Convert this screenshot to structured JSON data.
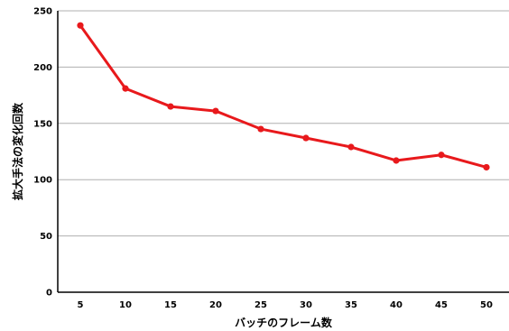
{
  "chart_data": {
    "type": "line",
    "title": "",
    "xlabel": "バッチのフレーム数",
    "ylabel": "拡大手法の変化回数",
    "x": [
      5,
      10,
      15,
      20,
      25,
      30,
      35,
      40,
      45,
      50
    ],
    "x_tick_labels": [
      "5",
      "10",
      "15",
      "20",
      "25",
      "30",
      "35",
      "40",
      "45",
      "50"
    ],
    "y_ticks": [
      0,
      50,
      100,
      150,
      200,
      250
    ],
    "y_tick_labels": [
      "0",
      "50",
      "100",
      "150",
      "200",
      "250"
    ],
    "ylim": [
      0,
      250
    ],
    "grid": "horizontal",
    "legend": "none",
    "series": [
      {
        "values": [
          237,
          181,
          165,
          161,
          145,
          137,
          129,
          117,
          122,
          111
        ],
        "color": "#e8191c"
      }
    ],
    "colors": {
      "grid": "#b0b0b0",
      "axis": "#000000",
      "line": "#e8191c"
    }
  }
}
